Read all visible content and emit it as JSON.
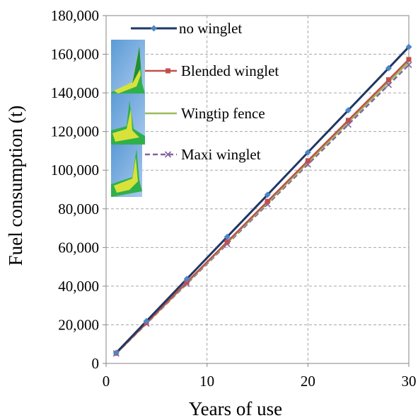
{
  "chart_data": {
    "type": "line",
    "title": "",
    "xlabel": "Years of use",
    "ylabel": "Fuel consumption (t)",
    "xlim": [
      0,
      30
    ],
    "ylim": [
      0,
      180000
    ],
    "x_ticks": [
      "0",
      "10",
      "20",
      "30"
    ],
    "y_ticks": [
      "0",
      "20,000",
      "40,000",
      "60,000",
      "80,000",
      "100,000",
      "120,000",
      "140,000",
      "160,000",
      "180,000"
    ],
    "grid": "dashed, both axes",
    "legend_position": "top-left",
    "x": [
      1,
      4,
      8,
      12,
      16,
      20,
      24,
      28,
      30
    ],
    "series": [
      {
        "name": "no winglet",
        "color": "#1f3864",
        "marker": "diamond",
        "marker_color": "#4a86c8",
        "dash": "solid",
        "values": [
          5500,
          21900,
          43700,
          65500,
          87300,
          109200,
          131000,
          152800,
          163800
        ]
      },
      {
        "name": "Blended winglet",
        "color": "#c0504d",
        "marker": "square",
        "marker_color": "#c0504d",
        "dash": "solid",
        "values": [
          5250,
          21000,
          42000,
          62900,
          83900,
          104900,
          125800,
          146800,
          157300
        ]
      },
      {
        "name": "Wingtip fence",
        "color": "#9bbb59",
        "marker": "none",
        "marker_color": "#9bbb59",
        "dash": "solid",
        "values": [
          5200,
          20800,
          41600,
          62400,
          83200,
          104000,
          124800,
          145600,
          156000
        ]
      },
      {
        "name": "Maxi winglet",
        "color": "#8064a2",
        "marker": "x",
        "marker_color": "#8064a2",
        "dash": "dashed",
        "values": [
          5150,
          20600,
          41200,
          61800,
          82400,
          103000,
          123600,
          144200,
          154500
        ]
      }
    ]
  }
}
